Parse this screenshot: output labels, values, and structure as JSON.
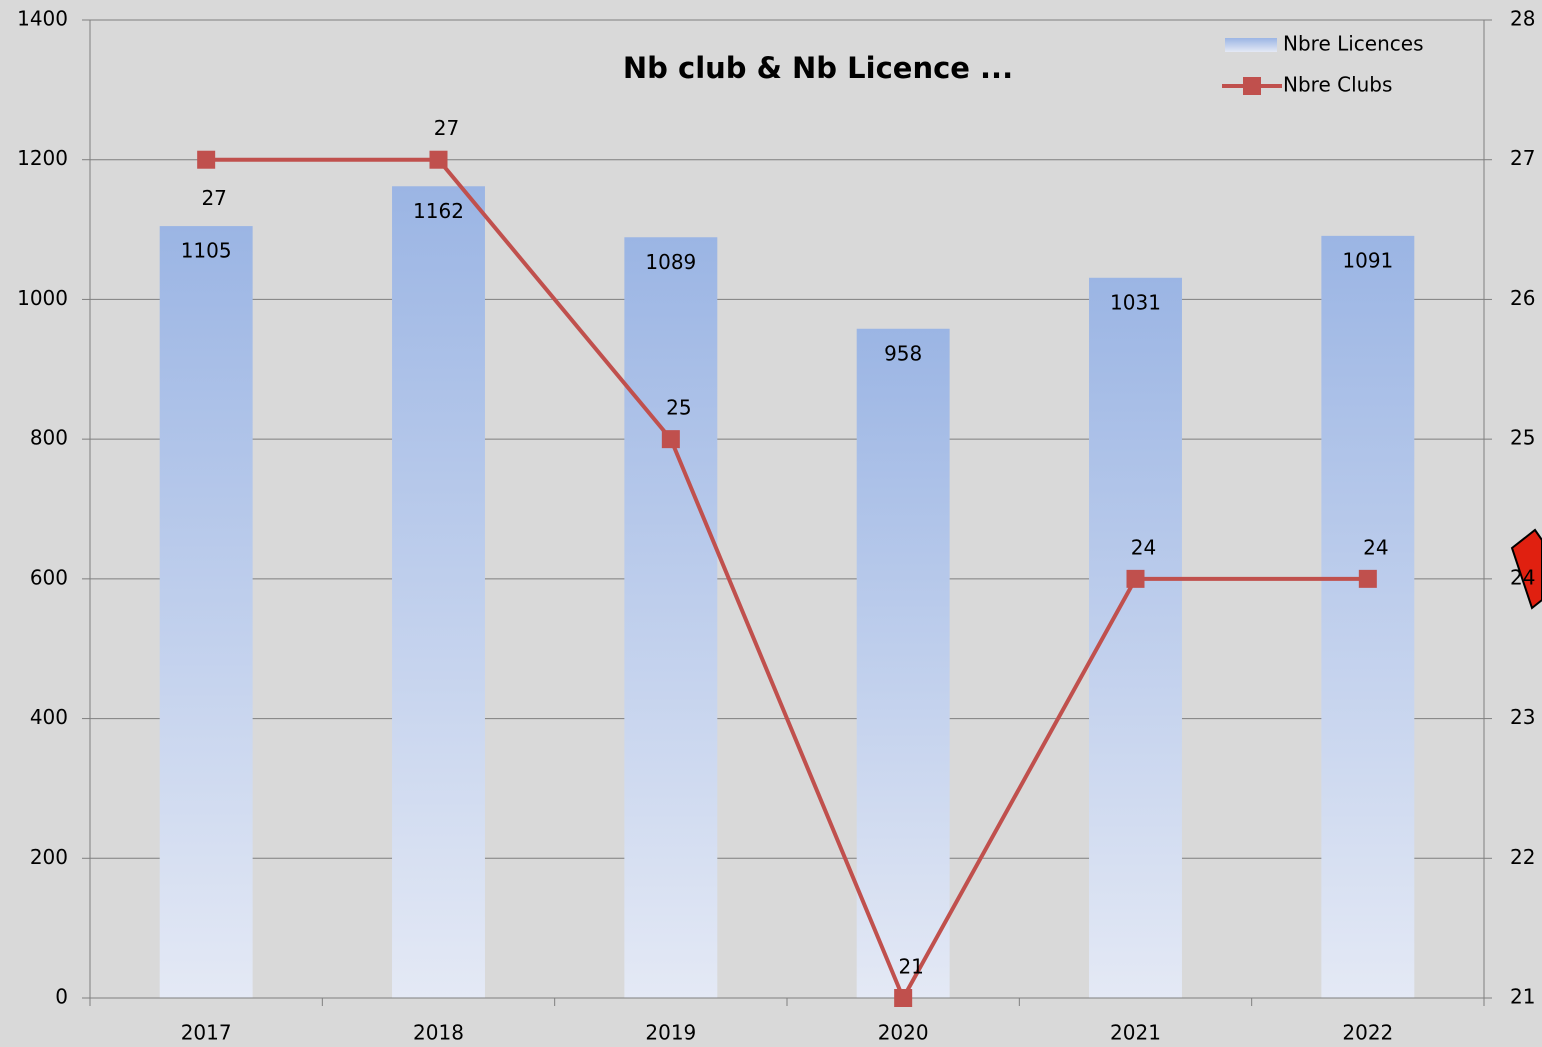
{
  "chart_data": {
    "type": "bar_line",
    "title": "Nb club & Nb Licence ...",
    "categories": [
      "2017",
      "2018",
      "2019",
      "2020",
      "2021",
      "2022"
    ],
    "series": [
      {
        "name": "Nbre Licences",
        "type": "bar",
        "color": "#9bb5e4",
        "values": [
          1105,
          1162,
          1089,
          958,
          1031,
          1091
        ]
      },
      {
        "name": "Nbre Clubs",
        "type": "line",
        "axis": "y2",
        "color": "#c0504d",
        "values": [
          27,
          27,
          25,
          21,
          24,
          24
        ]
      }
    ],
    "ylim": [
      0,
      1400
    ],
    "yticks": [
      0,
      200,
      400,
      600,
      800,
      1000,
      1200,
      1400
    ],
    "y2lim": [
      21,
      28
    ],
    "y2ticks": [
      21,
      22,
      23,
      24,
      25,
      26,
      27,
      28
    ],
    "grid": true,
    "legend": "top-right"
  }
}
